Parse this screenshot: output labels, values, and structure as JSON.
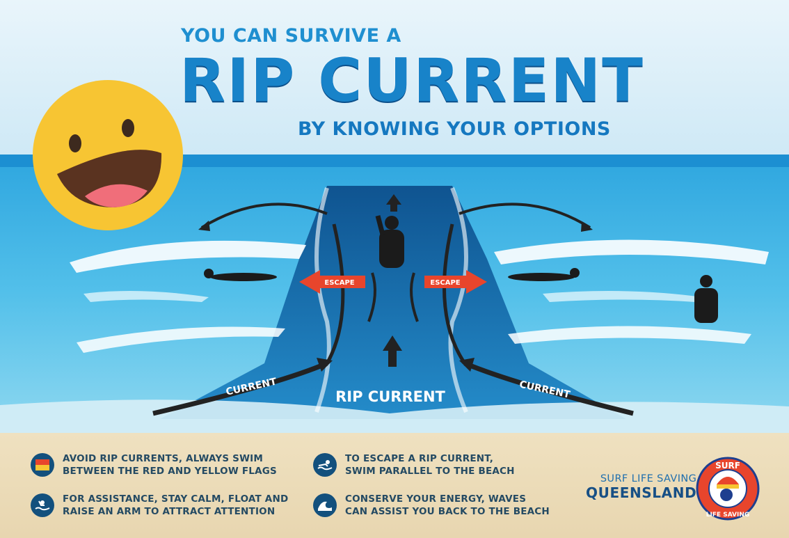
{
  "title": {
    "line1": "YOU CAN SURVIVE A",
    "line2": "RIP CURRENT",
    "line3": "BY KNOWING YOUR OPTIONS"
  },
  "diagram": {
    "escape_label": "ESCAPE",
    "current_label": "CURRENT",
    "rip_label": "RIP CURRENT"
  },
  "tips": [
    {
      "icon": "flag-icon",
      "line1": "AVOID RIP CURRENTS, ALWAYS SWIM",
      "line2": "BETWEEN THE RED AND YELLOW FLAGS"
    },
    {
      "icon": "swimmer-icon",
      "line1": "TO ESCAPE A RIP CURRENT,",
      "line2": "SWIM PARALLEL TO THE BEACH"
    },
    {
      "icon": "float-swimmer-icon",
      "line1": "FOR ASSISTANCE, STAY CALM, FLOAT AND",
      "line2": "RAISE AN ARM TO ATTRACT ATTENTION"
    },
    {
      "icon": "wave-icon",
      "line1": "CONSERVE YOUR ENERGY, WAVES",
      "line2": "CAN ASSIST YOU BACK TO THE BEACH"
    }
  ],
  "organization": {
    "line1": "SURF LIFE SAVING",
    "line2": "QUEENSLAND",
    "logo_top": "SURF",
    "logo_bottom": "LIFE SAVING"
  },
  "colors": {
    "title_blue": "#1883c9",
    "escape_red": "#e8452c",
    "sea_light": "#5cc3ea",
    "sea_deep": "#0a5fa0",
    "sand": "#ecdcb8",
    "emoji_yellow": "#f7c533"
  }
}
